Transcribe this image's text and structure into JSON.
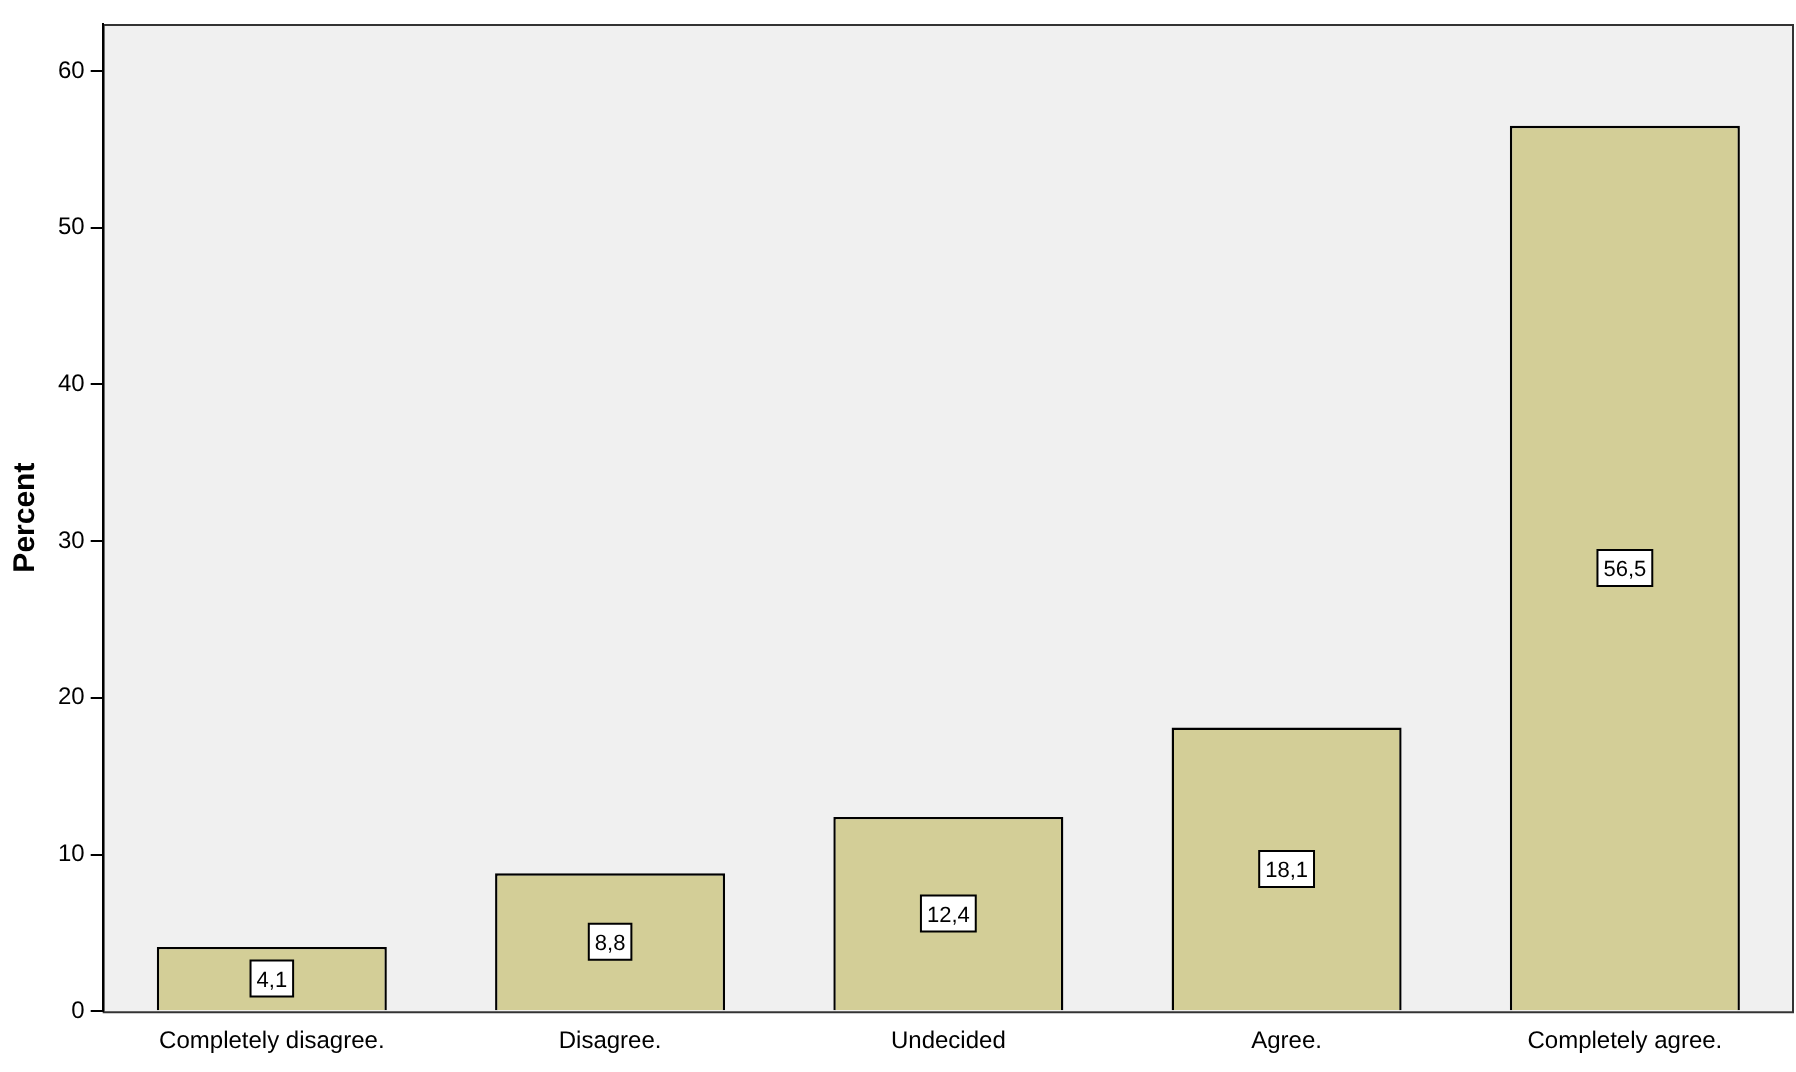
{
  "chart_data": {
    "type": "bar",
    "ylabel": "Percent",
    "categories": [
      "Completely disagree.",
      "Disagree.",
      "Undecided",
      "Agree.",
      "Completely agree."
    ],
    "values": [
      4.1,
      8.8,
      12.4,
      18.1,
      56.5
    ],
    "value_labels": [
      "4,1",
      "8,8",
      "12,4",
      "18,1",
      "56,5"
    ],
    "color": "#d3ce97",
    "ylim": [
      0,
      63
    ],
    "yticks": [
      0,
      10,
      20,
      30,
      40,
      50,
      60
    ],
    "grid": false,
    "legend": false
  }
}
